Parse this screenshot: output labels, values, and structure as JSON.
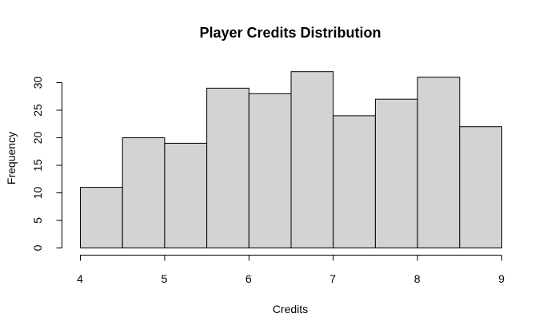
{
  "chart_data": {
    "type": "bar",
    "title": "Player Credits Distribution",
    "xlabel": "Credits",
    "ylabel": "Frequency",
    "bins": [
      {
        "start": 4.0,
        "end": 4.5,
        "count": 11
      },
      {
        "start": 4.5,
        "end": 5.0,
        "count": 20
      },
      {
        "start": 5.0,
        "end": 5.5,
        "count": 19
      },
      {
        "start": 5.5,
        "end": 6.0,
        "count": 29
      },
      {
        "start": 6.0,
        "end": 6.5,
        "count": 28
      },
      {
        "start": 6.5,
        "end": 7.0,
        "count": 32
      },
      {
        "start": 7.0,
        "end": 7.5,
        "count": 24
      },
      {
        "start": 7.5,
        "end": 8.0,
        "count": 27
      },
      {
        "start": 8.0,
        "end": 8.5,
        "count": 31
      },
      {
        "start": 8.5,
        "end": 9.0,
        "count": 22
      }
    ],
    "xlim": [
      4,
      9
    ],
    "ylim": [
      0,
      30
    ],
    "xticks": [
      "4",
      "5",
      "6",
      "7",
      "8",
      "9"
    ],
    "yticks": [
      "0",
      "5",
      "10",
      "15",
      "20",
      "25",
      "30"
    ],
    "grid": false,
    "bar_color": "#d3d3d3",
    "edge_color": "#000000"
  }
}
